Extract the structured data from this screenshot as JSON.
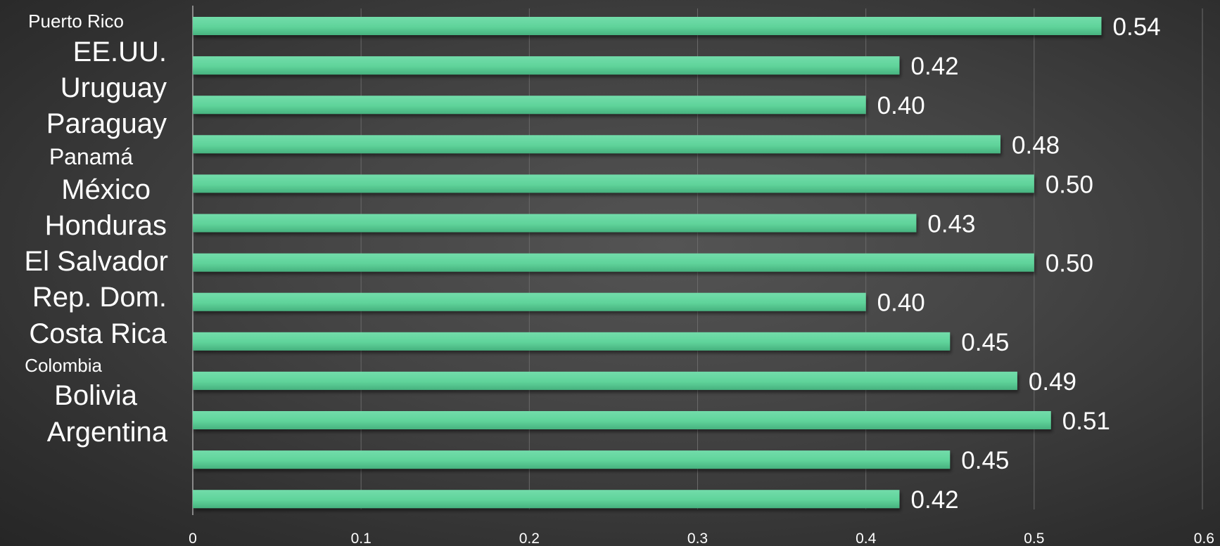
{
  "chart_data": {
    "type": "bar",
    "orientation": "horizontal",
    "categories": [
      "Puerto Rico",
      "EE.UU.",
      "Uruguay",
      "Paraguay",
      "Panamá",
      "México",
      "Honduras",
      "El Salvador",
      "Rep. Dom.",
      "Costa Rica",
      "Colombia",
      "Bolivia",
      "Argentina"
    ],
    "series": [
      {
        "values": [
          0.54,
          0.42,
          0.4,
          0.48,
          0.5,
          0.43,
          0.5,
          0.4,
          0.45,
          0.49,
          0.51,
          0.45,
          0.42
        ],
        "data_labels": [
          "0.54",
          "0.42",
          "0.40",
          "0.48",
          "0.50",
          "0.43",
          "0.50",
          "0.40",
          "0.45",
          "0.49",
          "0.51",
          "0.45",
          "0.42"
        ]
      }
    ],
    "x_ticks": [
      "0",
      "0.1",
      "0.2",
      "0.3",
      "0.4",
      "0.5",
      "0.6"
    ],
    "xlim": [
      0,
      0.6
    ],
    "title": "",
    "xlabel": "",
    "ylabel": "",
    "grid": true,
    "legend": "none",
    "colors": {
      "bar": "#5fd39a",
      "bar_light": "#72dcaa",
      "bar_dark": "#47b27f",
      "gridline": "#6a6a6a",
      "axis": "#8a8a8a",
      "text": "#ffffff",
      "background": "#3f3f3f"
    }
  }
}
